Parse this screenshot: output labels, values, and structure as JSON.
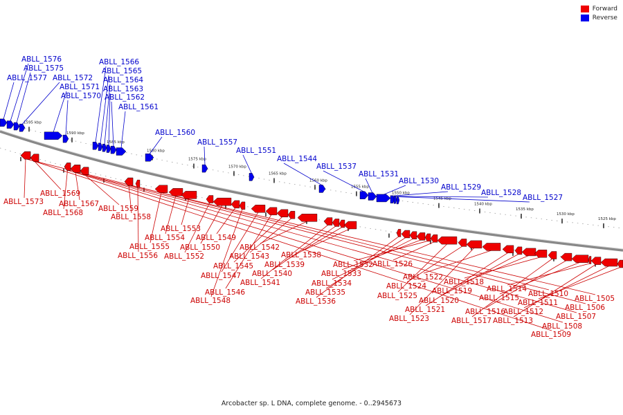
{
  "legend": {
    "forward_label": "Forward",
    "reverse_label": "Reverse",
    "forward_color": "#ee0000",
    "reverse_color": "#0000ee"
  },
  "caption": "Arcobacter sp. L DNA, complete genome. - 0..2945673",
  "ticks": [
    "1595 kbp",
    "1590 kbp",
    "1585 kbp",
    "1580 kbp",
    "1575 kbp",
    "1570 kbp",
    "1565 kbp",
    "1560 kbp",
    "1555 kbp",
    "1550 kbp",
    "1545 kbp",
    "1540 kbp",
    "1535 kbp",
    "1530 kbp",
    "1525 kbp"
  ],
  "genes_reverse": [
    "ABLL_1577",
    "ABLL_1576",
    "ABLL_1575",
    "ABLL_1572",
    "ABLL_1571",
    "ABLL_1570",
    "ABLL_1566",
    "ABLL_1565",
    "ABLL_1564",
    "ABLL_1563",
    "ABLL_1562",
    "ABLL_1561",
    "ABLL_1560",
    "ABLL_1557",
    "ABLL_1551",
    "ABLL_1544",
    "ABLL_1537",
    "ABLL_1531",
    "ABLL_1530",
    "ABLL_1529",
    "ABLL_1528",
    "ABLL_1527"
  ],
  "genes_forward": [
    "ABLL_1573",
    "ABLL_1569",
    "ABLL_1568",
    "ABLL_1567",
    "ABLL_1559",
    "ABLL_1558",
    "ABLL_1556",
    "ABLL_1555",
    "ABLL_1554",
    "ABLL_1553",
    "ABLL_1552",
    "ABLL_1550",
    "ABLL_1549",
    "ABLL_1548",
    "ABLL_1547",
    "ABLL_1546",
    "ABLL_1545",
    "ABLL_1543",
    "ABLL_1542",
    "ABLL_1541",
    "ABLL_1540",
    "ABLL_1539",
    "ABLL_1538",
    "ABLL_1536",
    "ABLL_1535",
    "ABLL_1534",
    "ABLL_1533",
    "ABLL_1532",
    "ABLL_1526",
    "ABLL_1525",
    "ABLL_1524",
    "ABLL_1523",
    "ABLL_1522",
    "ABLL_1521",
    "ABLL_1520",
    "ABLL_1519",
    "ABLL_1518",
    "ABLL_1517",
    "ABLL_1516",
    "ABLL_1515",
    "ABLL_1514",
    "ABLL_1513",
    "ABLL_1512",
    "ABLL_1511",
    "ABLL_1510",
    "ABLL_1509",
    "ABLL_1508",
    "ABLL_1507",
    "ABLL_1506",
    "ABLL_1505"
  ]
}
